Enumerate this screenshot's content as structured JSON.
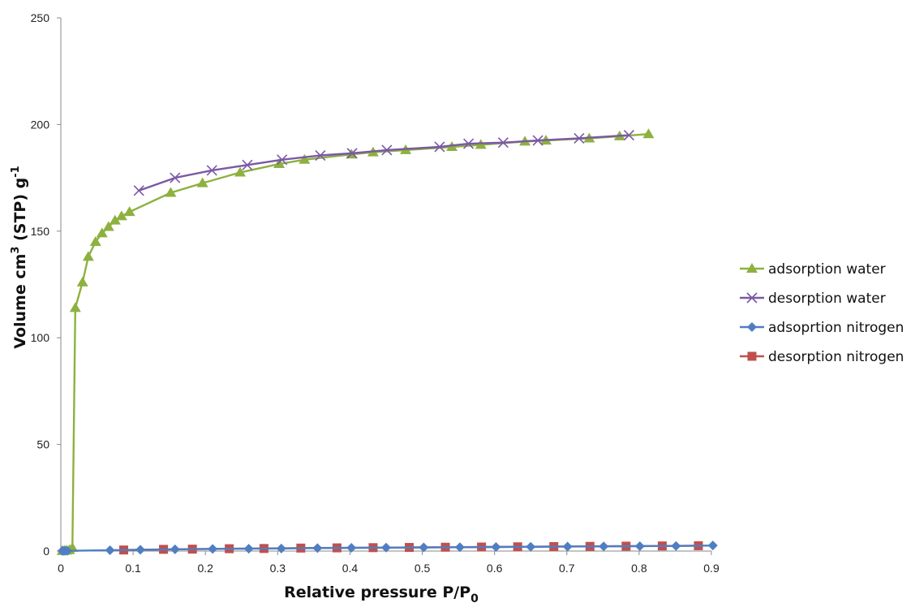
{
  "chart_data": {
    "type": "line",
    "title": "",
    "xlabel": {
      "main": "Relative pressure P/P",
      "sub": "0"
    },
    "ylabel": {
      "pre": "Volume cm",
      "sup1": "3",
      "mid": " (STP) g",
      "sup2": "-1"
    },
    "xlim": [
      0,
      0.9
    ],
    "ylim": [
      0,
      250
    ],
    "xticks": [
      0,
      0.1,
      0.2,
      0.3,
      0.4,
      0.5,
      0.6,
      0.7,
      0.8,
      0.9
    ],
    "xtick_labels": [
      "0",
      "0.1",
      "0.2",
      "0.3",
      "0.4",
      "0.5",
      "0.6",
      "0.7",
      "0.8",
      "0.9"
    ],
    "yticks": [
      0,
      50,
      100,
      150,
      200,
      250
    ],
    "ytick_labels": [
      "0",
      "50",
      "100",
      "150",
      "200",
      "250"
    ],
    "grid": false,
    "legend_position": "right",
    "series": [
      {
        "name": "adsorption water",
        "color": "#8DB13F",
        "marker": "triangle",
        "x": [
          0.002,
          0.005,
          0.008,
          0.012,
          0.016,
          0.02,
          0.03,
          0.038,
          0.048,
          0.057,
          0.066,
          0.075,
          0.084,
          0.095,
          0.152,
          0.196,
          0.248,
          0.302,
          0.337,
          0.402,
          0.432,
          0.477,
          0.541,
          0.581,
          0.642,
          0.671,
          0.731,
          0.773,
          0.813
        ],
        "y": [
          0.1,
          0.2,
          0.3,
          0.5,
          1.5,
          114,
          126,
          138,
          145,
          149,
          152,
          155,
          157,
          159,
          168,
          172.5,
          177.5,
          181.5,
          183.5,
          186,
          187,
          188,
          189.5,
          190.5,
          192,
          192.5,
          193.5,
          194.5,
          195.5
        ]
      },
      {
        "name": "desorption water",
        "color": "#7B58A6",
        "marker": "x",
        "x": [
          0.108,
          0.158,
          0.209,
          0.258,
          0.306,
          0.359,
          0.403,
          0.451,
          0.524,
          0.564,
          0.612,
          0.66,
          0.717,
          0.786
        ],
        "y": [
          169,
          175,
          178.5,
          181,
          183.5,
          185.5,
          186.5,
          188,
          189.5,
          191,
          191.5,
          192.5,
          193.5,
          195
        ]
      },
      {
        "name": "adsoprtion nitrogen",
        "color": "#4F7EC2",
        "marker": "diamond",
        "x": [
          0.002,
          0.004,
          0.006,
          0.009,
          0.068,
          0.11,
          0.158,
          0.21,
          0.26,
          0.305,
          0.355,
          0.402,
          0.45,
          0.502,
          0.552,
          0.602,
          0.65,
          0.701,
          0.751,
          0.801,
          0.851,
          0.902
        ],
        "y": [
          0.1,
          0.1,
          0.1,
          0.1,
          0.4,
          0.6,
          0.8,
          1.0,
          1.1,
          1.2,
          1.4,
          1.5,
          1.6,
          1.7,
          1.8,
          1.9,
          2.0,
          2.1,
          2.2,
          2.3,
          2.4,
          2.6
        ]
      },
      {
        "name": "desorption nitrogen",
        "color": "#C0504D",
        "marker": "square",
        "x": [
          0.087,
          0.142,
          0.182,
          0.233,
          0.281,
          0.332,
          0.382,
          0.432,
          0.482,
          0.532,
          0.582,
          0.632,
          0.682,
          0.732,
          0.782,
          0.832,
          0.882
        ],
        "y": [
          0.5,
          0.8,
          0.9,
          1.1,
          1.2,
          1.4,
          1.5,
          1.6,
          1.7,
          1.8,
          1.9,
          2.0,
          2.1,
          2.2,
          2.3,
          2.4,
          2.5
        ]
      }
    ]
  }
}
